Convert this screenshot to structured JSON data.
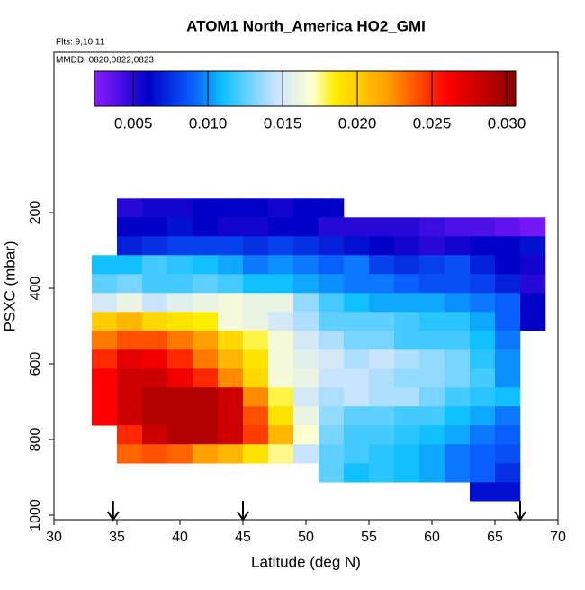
{
  "chart_data": {
    "type": "heatmap",
    "title": "ATOM1 North_America HO2_GMI",
    "annotations": [
      "Flts: 9,10,11",
      "MMDD: 0820,0822,0823"
    ],
    "xlabel": "Latitude (deg N)",
    "ylabel": "PSXC (mbar)",
    "xlim": [
      30,
      70
    ],
    "xticks": [
      30,
      35,
      40,
      45,
      50,
      55,
      60,
      65,
      70
    ],
    "ylim": [
      1012,
      -224
    ],
    "yticks": [
      200,
      400,
      600,
      800,
      1000
    ],
    "x_bins": [
      33,
      35,
      37,
      39,
      41,
      43,
      45,
      47,
      49,
      51,
      53,
      55,
      57,
      59,
      61,
      63,
      65,
      67,
      69
    ],
    "y_bins": [
      162.5,
      212.5,
      262.5,
      312.5,
      362.5,
      412.5,
      462.5,
      512.5,
      562.5,
      612.5,
      662.5,
      712.5,
      762.5,
      812.5,
      862.5,
      912.5,
      962.5
    ],
    "z": [
      [
        null,
        0.005,
        0.0055,
        0.0055,
        0.006,
        0.006,
        0.006,
        0.0055,
        0.006,
        0.006,
        null,
        null,
        null,
        null,
        null,
        null,
        null,
        null
      ],
      [
        null,
        0.006,
        0.006,
        0.0065,
        0.006,
        0.0055,
        0.0055,
        0.006,
        0.006,
        0.005,
        0.005,
        0.005,
        0.005,
        0.0045,
        0.004,
        0.004,
        0.0035,
        0.003
      ],
      [
        null,
        0.007,
        0.0075,
        0.008,
        0.008,
        0.008,
        0.0075,
        0.008,
        0.0075,
        0.007,
        0.0065,
        0.006,
        0.0055,
        0.005,
        0.0055,
        0.006,
        0.006,
        0.0065
      ],
      [
        0.011,
        0.011,
        0.012,
        0.0115,
        0.011,
        0.0105,
        0.0095,
        0.01,
        0.0095,
        0.009,
        0.0095,
        0.008,
        0.0075,
        0.008,
        0.0085,
        0.007,
        0.006,
        0.0055
      ],
      [
        0.0125,
        0.013,
        0.012,
        0.012,
        0.0125,
        0.012,
        0.011,
        0.011,
        0.0105,
        0.01,
        0.0095,
        0.0095,
        0.009,
        0.0085,
        0.0085,
        0.008,
        0.007,
        0.005
      ],
      [
        0.015,
        0.016,
        0.0145,
        0.0155,
        0.016,
        0.0165,
        0.016,
        0.016,
        0.0135,
        0.012,
        0.011,
        0.0105,
        0.0105,
        0.0105,
        0.01,
        0.0095,
        0.009,
        0.006
      ],
      [
        0.02,
        0.021,
        0.0195,
        0.019,
        0.0185,
        0.0165,
        0.016,
        0.015,
        0.014,
        0.0125,
        0.0125,
        0.0125,
        0.012,
        0.0115,
        0.0115,
        0.0105,
        0.009,
        0.006
      ],
      [
        0.023,
        0.024,
        0.024,
        0.023,
        0.022,
        0.0195,
        0.018,
        0.0165,
        0.015,
        0.014,
        0.013,
        0.013,
        0.012,
        0.012,
        0.012,
        0.011,
        0.0095,
        null
      ],
      [
        0.025,
        0.027,
        0.0265,
        0.025,
        0.023,
        0.021,
        0.019,
        0.0165,
        0.0155,
        0.015,
        0.014,
        0.0145,
        0.014,
        0.0135,
        0.013,
        0.0115,
        0.01,
        null
      ],
      [
        0.026,
        0.028,
        0.028,
        0.0265,
        0.025,
        0.0225,
        0.0195,
        0.0165,
        0.016,
        0.0145,
        0.0145,
        0.014,
        0.0135,
        0.0135,
        0.013,
        0.012,
        0.01,
        null
      ],
      [
        0.026,
        0.028,
        0.029,
        0.029,
        0.029,
        0.028,
        0.0225,
        0.018,
        0.015,
        0.014,
        0.0145,
        0.014,
        0.014,
        0.013,
        0.012,
        0.0115,
        0.011,
        null
      ],
      [
        0.026,
        0.028,
        0.029,
        0.029,
        0.029,
        0.028,
        0.024,
        0.019,
        0.016,
        0.0135,
        0.0125,
        0.0125,
        0.012,
        0.012,
        0.011,
        0.0105,
        0.0095,
        null
      ],
      [
        null,
        0.025,
        0.028,
        0.029,
        0.029,
        0.028,
        0.0245,
        0.021,
        0.017,
        0.013,
        0.012,
        0.012,
        0.0115,
        0.011,
        0.0105,
        0.0095,
        0.009,
        null
      ],
      [
        null,
        0.0235,
        0.024,
        0.0235,
        0.022,
        0.021,
        0.019,
        0.0175,
        0.0145,
        0.0125,
        0.012,
        0.0115,
        0.011,
        0.0105,
        0.0095,
        0.009,
        0.0085,
        null
      ],
      [
        null,
        null,
        null,
        null,
        null,
        null,
        null,
        null,
        null,
        0.0125,
        0.011,
        0.0115,
        0.011,
        0.0105,
        0.0095,
        0.009,
        0.0075,
        null
      ],
      [
        null,
        null,
        null,
        null,
        null,
        null,
        null,
        null,
        null,
        null,
        null,
        null,
        null,
        null,
        null,
        0.0065,
        0.0065,
        null
      ]
    ],
    "colorbar": {
      "lim": [
        0.0024,
        0.0306
      ],
      "ticks": [
        0.005,
        {
          "value": 0.01,
          "label": "0.010"
        },
        0.015,
        {
          "value": 0.02,
          "label": "0.020"
        },
        0.025,
        {
          "value": 0.03,
          "label": "0.030"
        }
      ],
      "stops": [
        0.0024,
        0.006,
        0.009,
        0.011,
        0.0145,
        0.017,
        0.0185,
        0.022,
        0.026,
        0.0306
      ],
      "colors": [
        "#8a1cff",
        "#0000c8",
        "#0a60ff",
        "#10c0ff",
        "#c8e4ff",
        "#ffffd0",
        "#ffee00",
        "#ffa000",
        "#ff0000",
        "#8b0000"
      ]
    },
    "arrows_x": [
      34.7,
      45,
      67
    ]
  }
}
